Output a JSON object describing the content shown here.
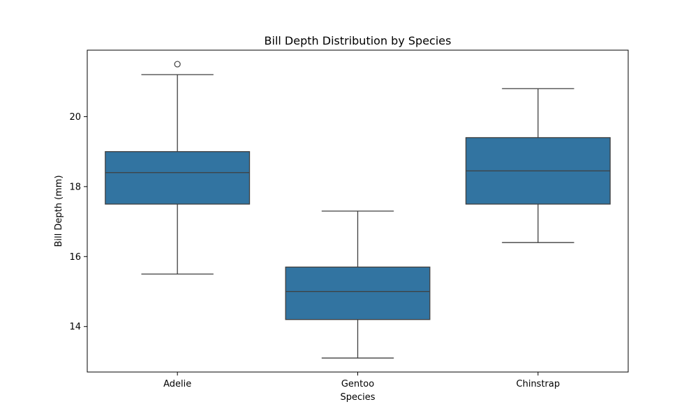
{
  "chart_data": {
    "type": "box",
    "title": "Bill Depth Distribution by Species",
    "xlabel": "Species",
    "ylabel": "Bill Depth (mm)",
    "ylim": [
      12.7,
      21.9
    ],
    "yticks": [
      14,
      16,
      18,
      20
    ],
    "legend": "none",
    "grid": false,
    "box_color": "#3274a1",
    "line_color": "#3f3f3f",
    "categories": [
      "Adelie",
      "Gentoo",
      "Chinstrap"
    ],
    "boxes": [
      {
        "category": "Adelie",
        "whisker_low": 15.5,
        "q1": 17.5,
        "median": 18.4,
        "q3": 19.0,
        "whisker_high": 21.2,
        "outliers": [
          21.5
        ]
      },
      {
        "category": "Gentoo",
        "whisker_low": 13.1,
        "q1": 14.2,
        "median": 15.0,
        "q3": 15.7,
        "whisker_high": 17.3,
        "outliers": []
      },
      {
        "category": "Chinstrap",
        "whisker_low": 16.4,
        "q1": 17.5,
        "median": 18.45,
        "q3": 19.4,
        "whisker_high": 20.8,
        "outliers": []
      }
    ]
  }
}
